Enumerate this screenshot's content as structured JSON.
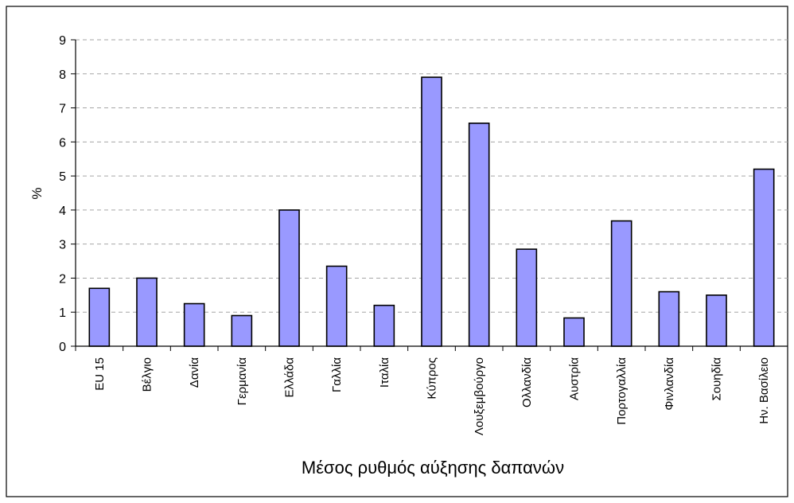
{
  "chart_data": {
    "type": "bar",
    "title": "",
    "xlabel": "Μέσος ρυθμός αύξησης δαπανών",
    "ylabel": "%",
    "ylim": [
      0,
      9
    ],
    "yticks": [
      "0",
      "1",
      "2",
      "3",
      "4",
      "5",
      "6",
      "7",
      "8",
      "9"
    ],
    "grid": true,
    "categories": [
      "EU 15",
      "Βέλγιο",
      "Δανία",
      "Γερμανία",
      "Ελλάδα",
      "Γαλλία",
      "Ιταλία",
      "Κύπρος",
      "Λουξεμβούργο",
      "Ολλανδία",
      "Αυστρία",
      "Πορτογαλλία",
      "Φινλανδία",
      "Σουηδία",
      "Ην. Βασίλειο"
    ],
    "values": [
      1.7,
      2.0,
      1.25,
      0.9,
      4.0,
      2.35,
      1.2,
      7.9,
      6.55,
      2.85,
      0.83,
      3.68,
      1.6,
      1.5,
      5.2
    ],
    "bar_color": "#9999ff",
    "bar_edge_color": "#000000"
  }
}
